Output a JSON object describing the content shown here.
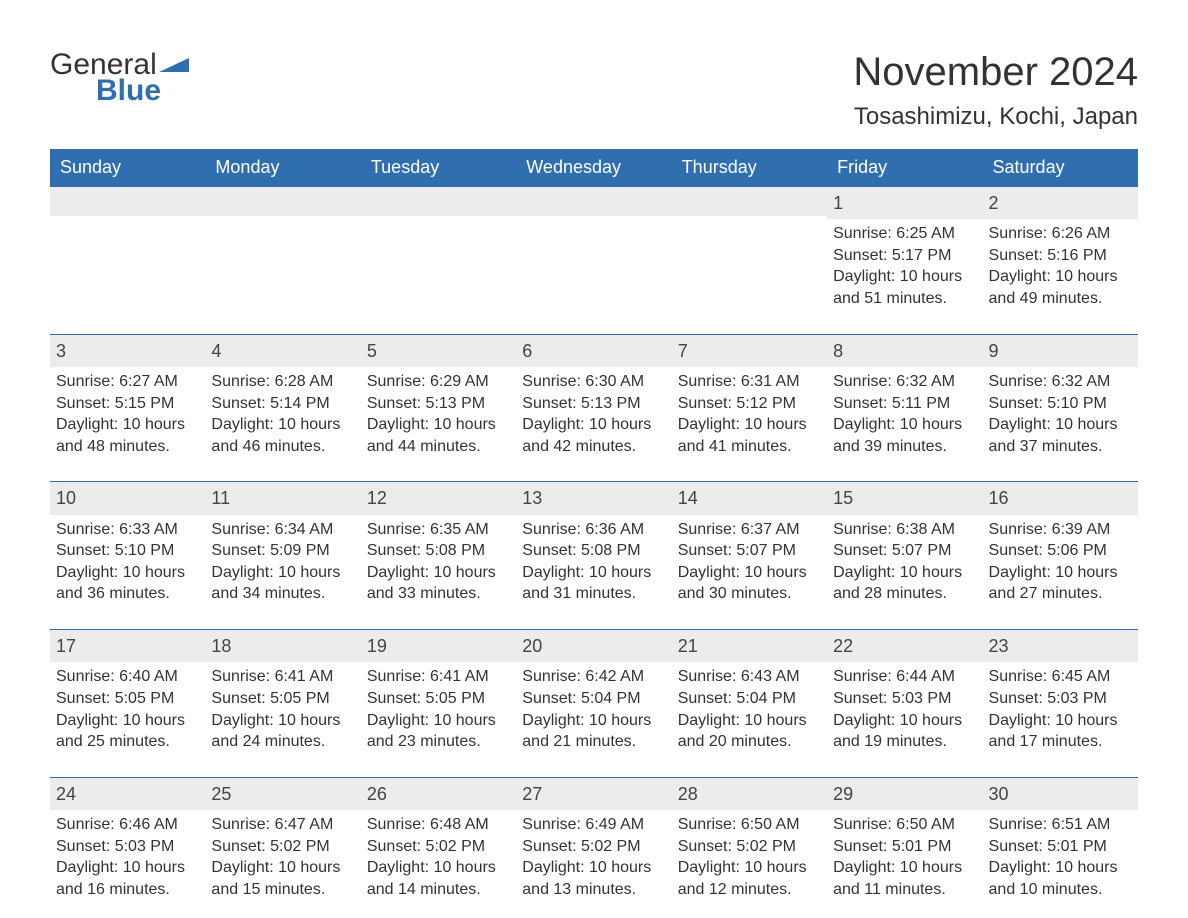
{
  "logo": {
    "word1": "General",
    "word2": "Blue"
  },
  "title": "November 2024",
  "location": "Tosashimizu, Kochi, Japan",
  "colors": {
    "header_bg": "#2f6fb0",
    "header_text": "#ffffff",
    "daynum_bg": "#ececec",
    "daynum_border": "#2f6fb0",
    "body_text": "#333333",
    "logo_blue": "#2f6fb0",
    "background": "#ffffff"
  },
  "typography": {
    "title_fontsize": 40,
    "location_fontsize": 24,
    "header_fontsize": 18,
    "daynum_fontsize": 18,
    "body_fontsize": 16,
    "logo_fontsize": 30,
    "font_family": "Arial"
  },
  "day_headers": [
    "Sunday",
    "Monday",
    "Tuesday",
    "Wednesday",
    "Thursday",
    "Friday",
    "Saturday"
  ],
  "weeks": [
    [
      {
        "empty": true
      },
      {
        "empty": true
      },
      {
        "empty": true
      },
      {
        "empty": true
      },
      {
        "empty": true
      },
      {
        "day": "1",
        "sunrise": "Sunrise: 6:25 AM",
        "sunset": "Sunset: 5:17 PM",
        "dl1": "Daylight: 10 hours",
        "dl2": "and 51 minutes."
      },
      {
        "day": "2",
        "sunrise": "Sunrise: 6:26 AM",
        "sunset": "Sunset: 5:16 PM",
        "dl1": "Daylight: 10 hours",
        "dl2": "and 49 minutes."
      }
    ],
    [
      {
        "day": "3",
        "sunrise": "Sunrise: 6:27 AM",
        "sunset": "Sunset: 5:15 PM",
        "dl1": "Daylight: 10 hours",
        "dl2": "and 48 minutes."
      },
      {
        "day": "4",
        "sunrise": "Sunrise: 6:28 AM",
        "sunset": "Sunset: 5:14 PM",
        "dl1": "Daylight: 10 hours",
        "dl2": "and 46 minutes."
      },
      {
        "day": "5",
        "sunrise": "Sunrise: 6:29 AM",
        "sunset": "Sunset: 5:13 PM",
        "dl1": "Daylight: 10 hours",
        "dl2": "and 44 minutes."
      },
      {
        "day": "6",
        "sunrise": "Sunrise: 6:30 AM",
        "sunset": "Sunset: 5:13 PM",
        "dl1": "Daylight: 10 hours",
        "dl2": "and 42 minutes."
      },
      {
        "day": "7",
        "sunrise": "Sunrise: 6:31 AM",
        "sunset": "Sunset: 5:12 PM",
        "dl1": "Daylight: 10 hours",
        "dl2": "and 41 minutes."
      },
      {
        "day": "8",
        "sunrise": "Sunrise: 6:32 AM",
        "sunset": "Sunset: 5:11 PM",
        "dl1": "Daylight: 10 hours",
        "dl2": "and 39 minutes."
      },
      {
        "day": "9",
        "sunrise": "Sunrise: 6:32 AM",
        "sunset": "Sunset: 5:10 PM",
        "dl1": "Daylight: 10 hours",
        "dl2": "and 37 minutes."
      }
    ],
    [
      {
        "day": "10",
        "sunrise": "Sunrise: 6:33 AM",
        "sunset": "Sunset: 5:10 PM",
        "dl1": "Daylight: 10 hours",
        "dl2": "and 36 minutes."
      },
      {
        "day": "11",
        "sunrise": "Sunrise: 6:34 AM",
        "sunset": "Sunset: 5:09 PM",
        "dl1": "Daylight: 10 hours",
        "dl2": "and 34 minutes."
      },
      {
        "day": "12",
        "sunrise": "Sunrise: 6:35 AM",
        "sunset": "Sunset: 5:08 PM",
        "dl1": "Daylight: 10 hours",
        "dl2": "and 33 minutes."
      },
      {
        "day": "13",
        "sunrise": "Sunrise: 6:36 AM",
        "sunset": "Sunset: 5:08 PM",
        "dl1": "Daylight: 10 hours",
        "dl2": "and 31 minutes."
      },
      {
        "day": "14",
        "sunrise": "Sunrise: 6:37 AM",
        "sunset": "Sunset: 5:07 PM",
        "dl1": "Daylight: 10 hours",
        "dl2": "and 30 minutes."
      },
      {
        "day": "15",
        "sunrise": "Sunrise: 6:38 AM",
        "sunset": "Sunset: 5:07 PM",
        "dl1": "Daylight: 10 hours",
        "dl2": "and 28 minutes."
      },
      {
        "day": "16",
        "sunrise": "Sunrise: 6:39 AM",
        "sunset": "Sunset: 5:06 PM",
        "dl1": "Daylight: 10 hours",
        "dl2": "and 27 minutes."
      }
    ],
    [
      {
        "day": "17",
        "sunrise": "Sunrise: 6:40 AM",
        "sunset": "Sunset: 5:05 PM",
        "dl1": "Daylight: 10 hours",
        "dl2": "and 25 minutes."
      },
      {
        "day": "18",
        "sunrise": "Sunrise: 6:41 AM",
        "sunset": "Sunset: 5:05 PM",
        "dl1": "Daylight: 10 hours",
        "dl2": "and 24 minutes."
      },
      {
        "day": "19",
        "sunrise": "Sunrise: 6:41 AM",
        "sunset": "Sunset: 5:05 PM",
        "dl1": "Daylight: 10 hours",
        "dl2": "and 23 minutes."
      },
      {
        "day": "20",
        "sunrise": "Sunrise: 6:42 AM",
        "sunset": "Sunset: 5:04 PM",
        "dl1": "Daylight: 10 hours",
        "dl2": "and 21 minutes."
      },
      {
        "day": "21",
        "sunrise": "Sunrise: 6:43 AM",
        "sunset": "Sunset: 5:04 PM",
        "dl1": "Daylight: 10 hours",
        "dl2": "and 20 minutes."
      },
      {
        "day": "22",
        "sunrise": "Sunrise: 6:44 AM",
        "sunset": "Sunset: 5:03 PM",
        "dl1": "Daylight: 10 hours",
        "dl2": "and 19 minutes."
      },
      {
        "day": "23",
        "sunrise": "Sunrise: 6:45 AM",
        "sunset": "Sunset: 5:03 PM",
        "dl1": "Daylight: 10 hours",
        "dl2": "and 17 minutes."
      }
    ],
    [
      {
        "day": "24",
        "sunrise": "Sunrise: 6:46 AM",
        "sunset": "Sunset: 5:03 PM",
        "dl1": "Daylight: 10 hours",
        "dl2": "and 16 minutes."
      },
      {
        "day": "25",
        "sunrise": "Sunrise: 6:47 AM",
        "sunset": "Sunset: 5:02 PM",
        "dl1": "Daylight: 10 hours",
        "dl2": "and 15 minutes."
      },
      {
        "day": "26",
        "sunrise": "Sunrise: 6:48 AM",
        "sunset": "Sunset: 5:02 PM",
        "dl1": "Daylight: 10 hours",
        "dl2": "and 14 minutes."
      },
      {
        "day": "27",
        "sunrise": "Sunrise: 6:49 AM",
        "sunset": "Sunset: 5:02 PM",
        "dl1": "Daylight: 10 hours",
        "dl2": "and 13 minutes."
      },
      {
        "day": "28",
        "sunrise": "Sunrise: 6:50 AM",
        "sunset": "Sunset: 5:02 PM",
        "dl1": "Daylight: 10 hours",
        "dl2": "and 12 minutes."
      },
      {
        "day": "29",
        "sunrise": "Sunrise: 6:50 AM",
        "sunset": "Sunset: 5:01 PM",
        "dl1": "Daylight: 10 hours",
        "dl2": "and 11 minutes."
      },
      {
        "day": "30",
        "sunrise": "Sunrise: 6:51 AM",
        "sunset": "Sunset: 5:01 PM",
        "dl1": "Daylight: 10 hours",
        "dl2": "and 10 minutes."
      }
    ]
  ]
}
